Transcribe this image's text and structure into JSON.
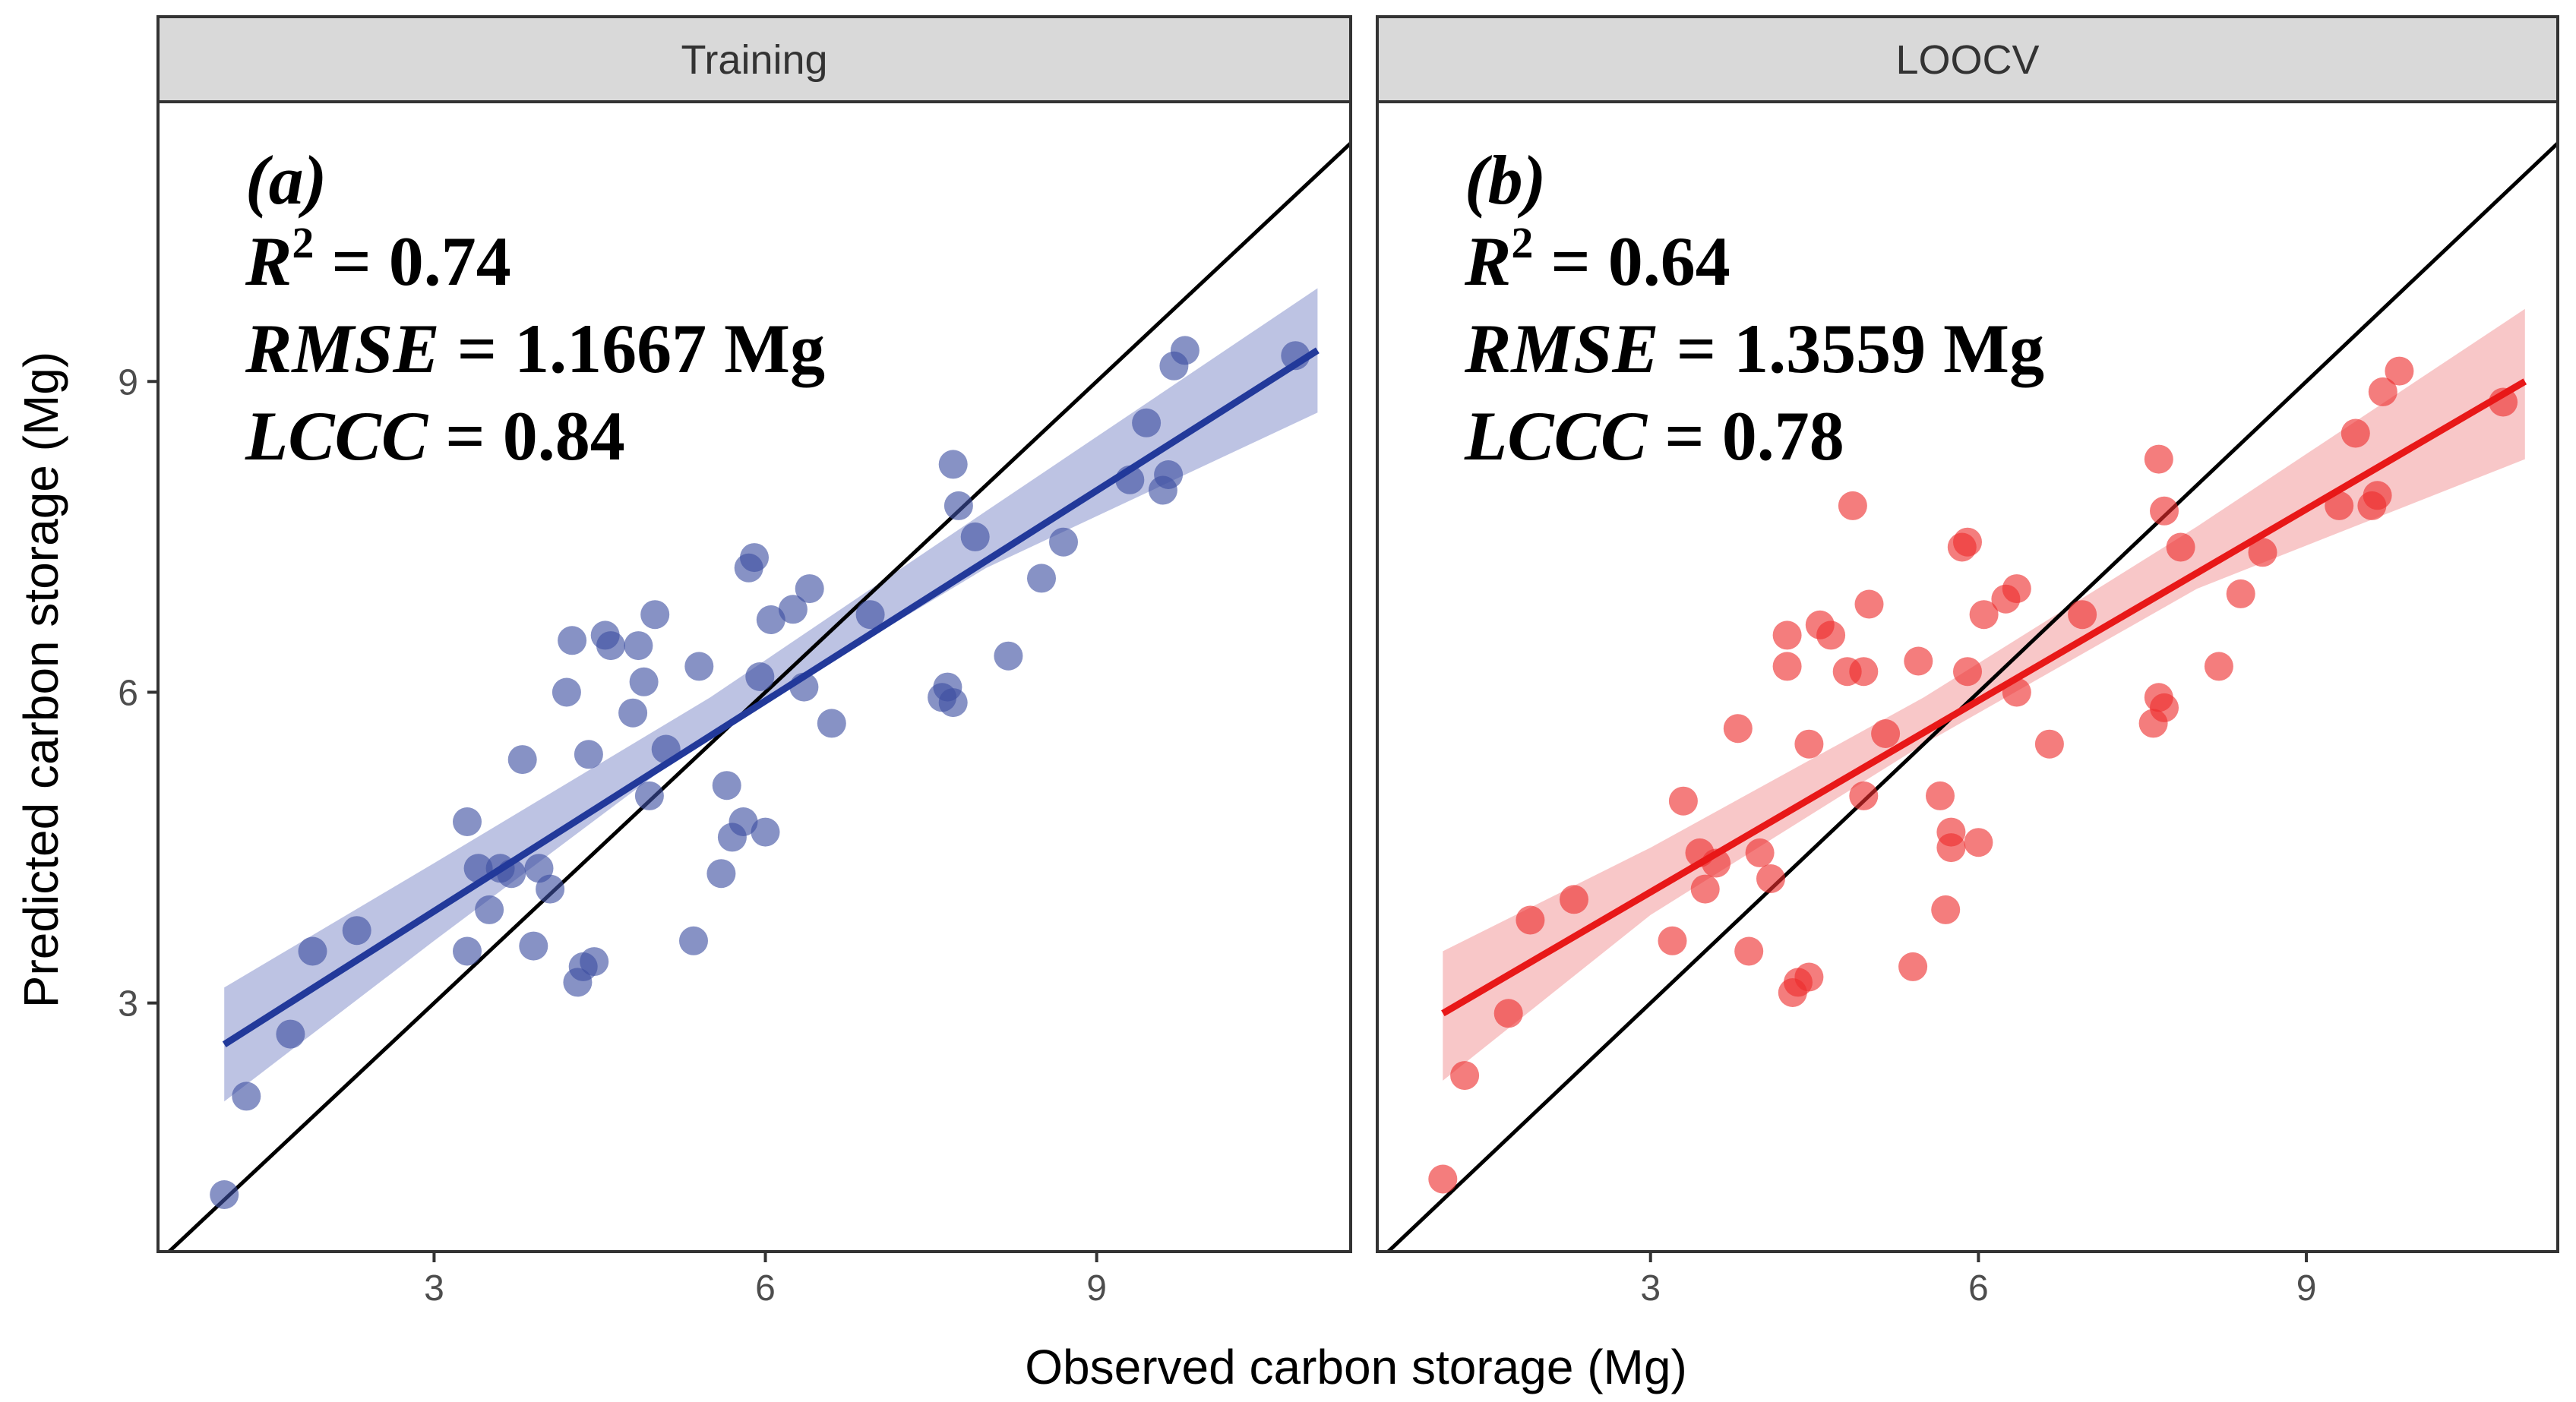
{
  "chart_data": {
    "type": "scatter",
    "xlabel": "Observed carbon storage (Mg)",
    "ylabel": "Predicted carbon storage (Mg)",
    "xlim": [
      0.5,
      11.3
    ],
    "ylim": [
      0.6,
      11.7
    ],
    "x_ticks": [
      3,
      6,
      9
    ],
    "y_ticks": [
      3,
      6,
      9
    ],
    "x_tick_labels": [
      "3",
      "6",
      "9"
    ],
    "y_tick_labels": [
      "3",
      "6",
      "9"
    ],
    "grid": false,
    "panels": [
      {
        "strip": "Training",
        "label": "(a)",
        "stats": {
          "r2_sym": "R",
          "r2_sup": "2",
          "r2_val": " = 0.74",
          "rmse_sym": "RMSE",
          "rmse_val": " = 1.1667 Mg",
          "lccc_sym": "LCCC",
          "lccc_val": " = 0.84"
        },
        "color": "#3d4fa1",
        "line_color": "#22399a",
        "band_color": "#8791cc",
        "regression": {
          "x0": 1.1,
          "y0": 2.6,
          "x1": 11.0,
          "y1": 9.3
        },
        "ci_upper": [
          [
            1.1,
            3.15
          ],
          [
            3.0,
            4.35
          ],
          [
            5.5,
            5.95
          ],
          [
            8.0,
            7.75
          ],
          [
            11.0,
            9.9
          ]
        ],
        "ci_lower": [
          [
            1.1,
            2.05
          ],
          [
            3.0,
            3.6
          ],
          [
            5.5,
            5.6
          ],
          [
            8.0,
            7.2
          ],
          [
            11.0,
            8.7
          ]
        ],
        "points": [
          [
            1.1,
            1.15
          ],
          [
            1.3,
            2.1
          ],
          [
            1.7,
            2.7
          ],
          [
            1.9,
            3.5
          ],
          [
            2.3,
            3.7
          ],
          [
            3.3,
            3.5
          ],
          [
            3.3,
            4.75
          ],
          [
            3.4,
            4.3
          ],
          [
            3.5,
            3.9
          ],
          [
            3.6,
            4.3
          ],
          [
            3.7,
            4.25
          ],
          [
            3.8,
            5.35
          ],
          [
            3.9,
            3.55
          ],
          [
            3.95,
            4.3
          ],
          [
            4.05,
            4.1
          ],
          [
            4.2,
            6.0
          ],
          [
            4.25,
            6.5
          ],
          [
            4.3,
            3.2
          ],
          [
            4.35,
            3.35
          ],
          [
            4.4,
            5.4
          ],
          [
            4.45,
            3.4
          ],
          [
            4.55,
            6.55
          ],
          [
            4.6,
            6.45
          ],
          [
            4.8,
            5.8
          ],
          [
            4.85,
            6.45
          ],
          [
            4.9,
            6.1
          ],
          [
            4.95,
            5.0
          ],
          [
            5.0,
            6.75
          ],
          [
            5.1,
            5.45
          ],
          [
            5.35,
            3.6
          ],
          [
            5.4,
            6.25
          ],
          [
            5.6,
            4.25
          ],
          [
            5.65,
            5.1
          ],
          [
            5.7,
            4.6
          ],
          [
            5.8,
            4.75
          ],
          [
            5.85,
            7.2
          ],
          [
            5.9,
            7.3
          ],
          [
            5.95,
            6.15
          ],
          [
            6.0,
            4.65
          ],
          [
            6.05,
            6.7
          ],
          [
            6.25,
            6.8
          ],
          [
            6.35,
            6.05
          ],
          [
            6.4,
            7.0
          ],
          [
            6.6,
            5.7
          ],
          [
            6.95,
            6.75
          ],
          [
            7.6,
            5.95
          ],
          [
            7.65,
            6.05
          ],
          [
            7.7,
            5.9
          ],
          [
            7.7,
            8.2
          ],
          [
            7.75,
            7.8
          ],
          [
            7.9,
            7.5
          ],
          [
            8.2,
            6.35
          ],
          [
            8.5,
            7.1
          ],
          [
            8.7,
            7.45
          ],
          [
            9.3,
            8.05
          ],
          [
            9.45,
            8.6
          ],
          [
            9.6,
            7.95
          ],
          [
            9.65,
            8.1
          ],
          [
            9.7,
            9.15
          ],
          [
            9.8,
            9.3
          ],
          [
            10.8,
            9.25
          ]
        ]
      },
      {
        "strip": "LOOCV",
        "label": "(b)",
        "stats": {
          "r2_sym": "R",
          "r2_sup": "2",
          "r2_val": " = 0.64",
          "rmse_sym": "RMSE",
          "rmse_val": " = 1.3559 Mg",
          "lccc_sym": "LCCC",
          "lccc_val": " = 0.78"
        },
        "color": "#ee2d2d",
        "line_color": "#e81818",
        "band_color": "#f3999a",
        "regression": {
          "x0": 1.1,
          "y0": 2.9,
          "x1": 11.0,
          "y1": 9.0
        },
        "ci_upper": [
          [
            1.1,
            3.5
          ],
          [
            3.0,
            4.5
          ],
          [
            5.5,
            5.95
          ],
          [
            8.0,
            7.6
          ],
          [
            11.0,
            9.7
          ]
        ],
        "ci_lower": [
          [
            1.1,
            2.25
          ],
          [
            3.0,
            3.85
          ],
          [
            5.5,
            5.5
          ],
          [
            8.0,
            7.0
          ],
          [
            11.0,
            8.25
          ]
        ],
        "points": [
          [
            1.1,
            1.3
          ],
          [
            1.3,
            2.3
          ],
          [
            1.7,
            2.9
          ],
          [
            1.9,
            3.8
          ],
          [
            2.3,
            4.0
          ],
          [
            3.2,
            3.6
          ],
          [
            3.3,
            4.95
          ],
          [
            3.45,
            4.45
          ],
          [
            3.5,
            4.1
          ],
          [
            3.6,
            4.35
          ],
          [
            3.8,
            5.65
          ],
          [
            3.9,
            3.5
          ],
          [
            4.0,
            4.45
          ],
          [
            4.1,
            4.2
          ],
          [
            4.25,
            6.55
          ],
          [
            4.25,
            6.25
          ],
          [
            4.3,
            3.1
          ],
          [
            4.35,
            3.2
          ],
          [
            4.45,
            3.25
          ],
          [
            4.45,
            5.5
          ],
          [
            4.55,
            6.65
          ],
          [
            4.65,
            6.55
          ],
          [
            4.8,
            6.2
          ],
          [
            4.85,
            7.8
          ],
          [
            4.95,
            6.2
          ],
          [
            4.95,
            5.0
          ],
          [
            5.0,
            6.85
          ],
          [
            5.15,
            5.6
          ],
          [
            5.4,
            3.35
          ],
          [
            5.45,
            6.3
          ],
          [
            5.65,
            5.0
          ],
          [
            5.7,
            3.9
          ],
          [
            5.75,
            4.5
          ],
          [
            5.75,
            4.65
          ],
          [
            5.85,
            7.4
          ],
          [
            5.9,
            7.45
          ],
          [
            5.9,
            6.2
          ],
          [
            6.0,
            4.55
          ],
          [
            6.05,
            6.75
          ],
          [
            6.25,
            6.9
          ],
          [
            6.35,
            7.0
          ],
          [
            6.35,
            6.0
          ],
          [
            6.65,
            5.5
          ],
          [
            6.95,
            6.75
          ],
          [
            7.6,
            5.7
          ],
          [
            7.65,
            5.95
          ],
          [
            7.7,
            5.85
          ],
          [
            7.65,
            8.25
          ],
          [
            7.7,
            7.75
          ],
          [
            7.85,
            7.4
          ],
          [
            8.2,
            6.25
          ],
          [
            8.4,
            6.95
          ],
          [
            8.6,
            7.35
          ],
          [
            9.3,
            7.8
          ],
          [
            9.45,
            8.5
          ],
          [
            9.6,
            7.8
          ],
          [
            9.65,
            7.9
          ],
          [
            9.7,
            8.9
          ],
          [
            9.85,
            9.1
          ],
          [
            10.8,
            8.8
          ]
        ]
      }
    ]
  }
}
